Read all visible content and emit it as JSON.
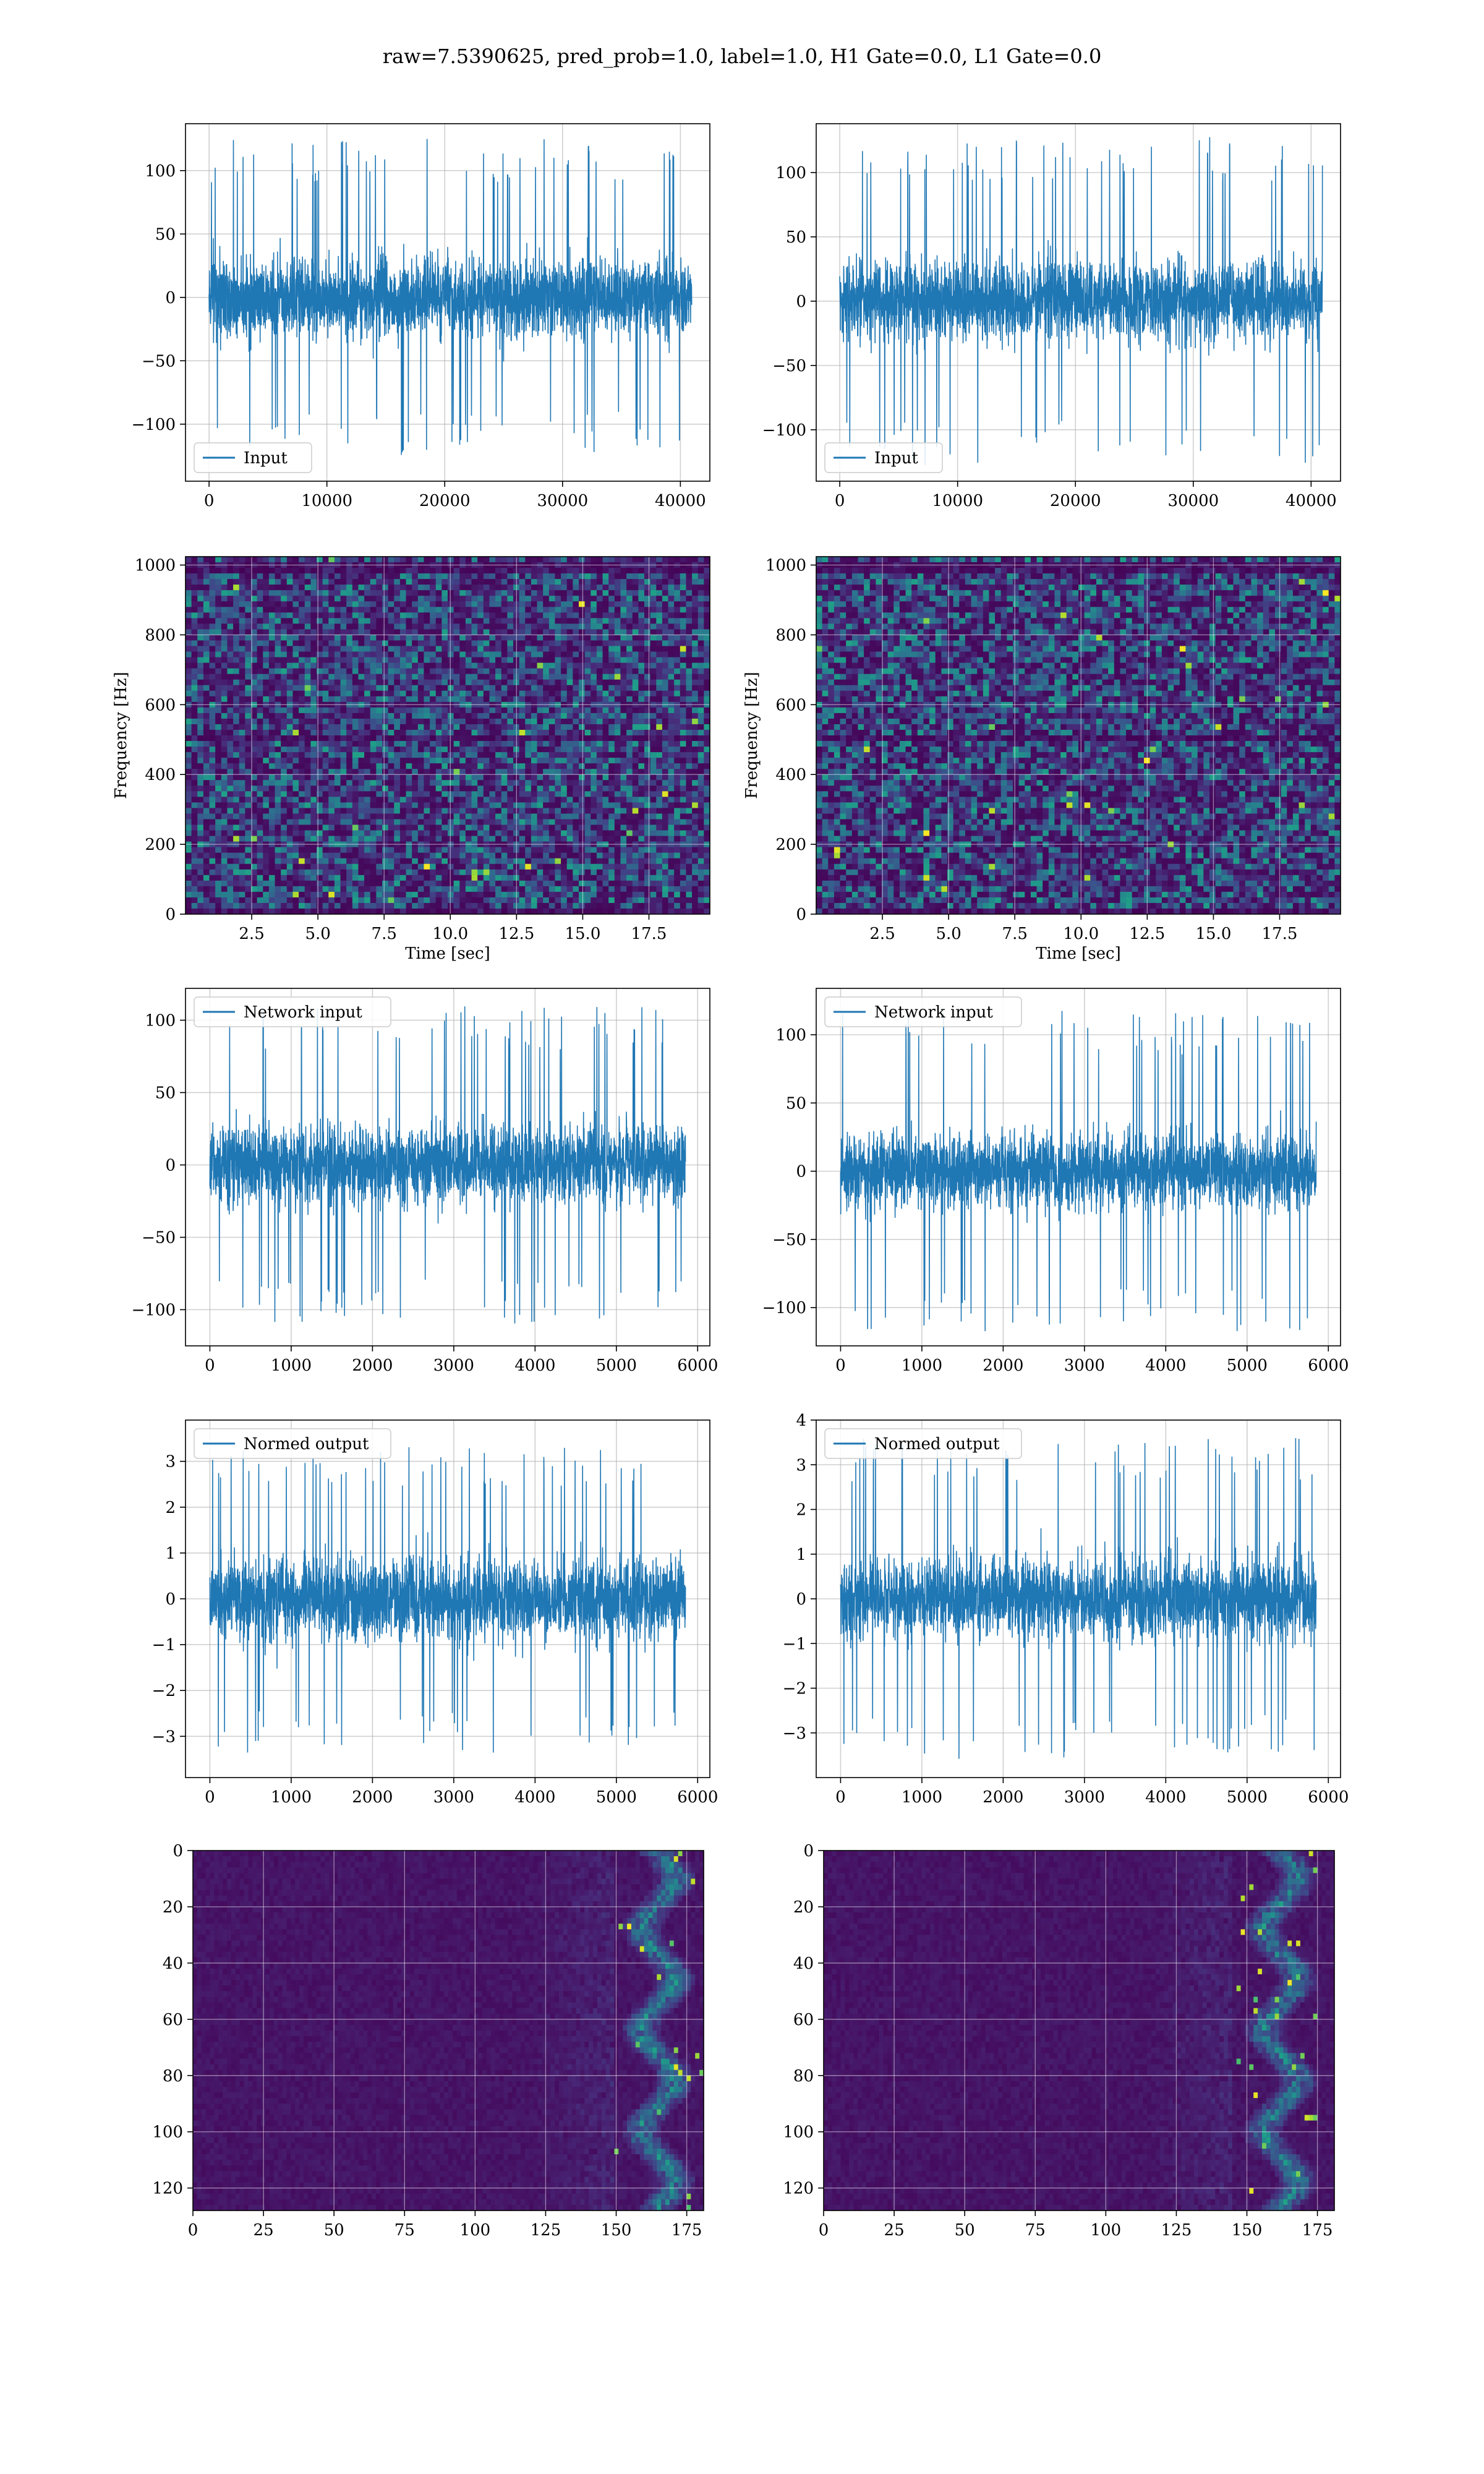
{
  "figure_title": "raw=7.5390625, pred_prob=1.0, label=1.0, H1 Gate=0.0, L1 Gate=0.0",
  "colors": {
    "line": "#1f77b4",
    "grid": "#b0b0b0",
    "viridis_dark": "#440154",
    "viridis_mid": "#21918c",
    "viridis_bright": "#fde725"
  },
  "chart_data": [
    {
      "id": "r0c0",
      "type": "line",
      "legend": "Input",
      "legend_loc": "lower-left",
      "grid": true,
      "xlim": [
        -2000,
        42500
      ],
      "ylim": [
        -145,
        137
      ],
      "x_range": [
        0,
        40960
      ],
      "xticks": [
        0,
        10000,
        20000,
        30000,
        40000
      ],
      "yticks": [
        -100,
        -50,
        0,
        50,
        100
      ],
      "amplitude": 35,
      "peak": 125
    },
    {
      "id": "r0c1",
      "type": "line",
      "legend": "Input",
      "legend_loc": "lower-left",
      "grid": true,
      "xlim": [
        -2000,
        42500
      ],
      "ylim": [
        -140,
        138
      ],
      "x_range": [
        0,
        40960
      ],
      "xticks": [
        0,
        10000,
        20000,
        30000,
        40000
      ],
      "yticks": [
        -100,
        -50,
        0,
        50,
        100
      ],
      "amplitude": 35,
      "peak": 128
    },
    {
      "id": "r1c0",
      "type": "heatmap",
      "kind": "spectrogram",
      "grid": true,
      "xlim": [
        0,
        19.8
      ],
      "ylim": [
        0,
        1024
      ],
      "xlabel": "Time [sec]",
      "ylabel": "Frequency [Hz]",
      "xticks": [
        2.5,
        5.0,
        7.5,
        10.0,
        12.5,
        15.0,
        17.5
      ],
      "xtick_labels": [
        "2.5",
        "5.0",
        "7.5",
        "10.0",
        "12.5",
        "15.0",
        "17.5"
      ],
      "yticks": [
        0,
        200,
        400,
        600,
        800,
        1000
      ],
      "dark_bands_hz": [
        500,
        990,
        12
      ]
    },
    {
      "id": "r1c1",
      "type": "heatmap",
      "kind": "spectrogram",
      "grid": true,
      "xlim": [
        0,
        19.8
      ],
      "ylim": [
        0,
        1024
      ],
      "xlabel": "Time [sec]",
      "ylabel": "Frequency [Hz]",
      "xticks": [
        2.5,
        5.0,
        7.5,
        10.0,
        12.5,
        15.0,
        17.5
      ],
      "xtick_labels": [
        "2.5",
        "5.0",
        "7.5",
        "10.0",
        "12.5",
        "15.0",
        "17.5"
      ],
      "yticks": [
        0,
        200,
        400,
        600,
        800,
        1000
      ],
      "dark_bands_hz": [
        500,
        990,
        12
      ]
    },
    {
      "id": "r2c0",
      "type": "line",
      "legend": "Network input",
      "legend_loc": "upper-left",
      "grid": true,
      "xlim": [
        -300,
        6150
      ],
      "ylim": [
        -125,
        122
      ],
      "x_range": [
        0,
        5850
      ],
      "xticks": [
        0,
        1000,
        2000,
        3000,
        4000,
        5000,
        6000
      ],
      "yticks": [
        -100,
        -50,
        0,
        50,
        100
      ],
      "amplitude": 30,
      "peak": 110
    },
    {
      "id": "r2c1",
      "type": "line",
      "legend": "Network input",
      "legend_loc": "upper-left",
      "grid": true,
      "xlim": [
        -300,
        6150
      ],
      "ylim": [
        -128,
        134
      ],
      "x_range": [
        0,
        5850
      ],
      "xticks": [
        0,
        1000,
        2000,
        3000,
        4000,
        5000,
        6000
      ],
      "yticks": [
        -100,
        -50,
        0,
        50,
        100
      ],
      "amplitude": 30,
      "peak": 118
    },
    {
      "id": "r3c0",
      "type": "line",
      "legend": "Normed output",
      "legend_loc": "upper-left",
      "grid": true,
      "xlim": [
        -300,
        6150
      ],
      "ylim": [
        -3.9,
        3.9
      ],
      "x_range": [
        0,
        5850
      ],
      "xticks": [
        0,
        1000,
        2000,
        3000,
        4000,
        5000,
        6000
      ],
      "yticks": [
        -3,
        -2,
        -1,
        0,
        1,
        2,
        3
      ],
      "amplitude": 1.0,
      "peak": 3.4
    },
    {
      "id": "r3c1",
      "type": "line",
      "legend": "Normed output",
      "legend_loc": "upper-left",
      "grid": true,
      "xlim": [
        -300,
        6150
      ],
      "ylim": [
        -4.0,
        4.0
      ],
      "x_range": [
        0,
        5850
      ],
      "xticks": [
        0,
        1000,
        2000,
        3000,
        4000,
        5000,
        6000
      ],
      "yticks": [
        -3,
        -2,
        -1,
        0,
        1,
        2,
        3,
        4
      ],
      "amplitude": 1.0,
      "peak": 3.6
    },
    {
      "id": "r4c0",
      "type": "heatmap",
      "kind": "matrix",
      "grid": true,
      "xlim": [
        0,
        181
      ],
      "ylim": [
        128,
        0
      ],
      "xticks": [
        0,
        25,
        50,
        75,
        100,
        125,
        150,
        175
      ],
      "yticks": [
        0,
        20,
        40,
        60,
        80,
        100,
        120
      ],
      "active_from": 150,
      "active_center": 165
    },
    {
      "id": "r4c1",
      "type": "heatmap",
      "kind": "matrix",
      "grid": true,
      "xlim": [
        0,
        181
      ],
      "ylim": [
        128,
        0
      ],
      "xticks": [
        0,
        25,
        50,
        75,
        100,
        125,
        150,
        175
      ],
      "yticks": [
        0,
        20,
        40,
        60,
        80,
        100,
        120
      ],
      "active_from": 145,
      "active_center": 162
    }
  ]
}
